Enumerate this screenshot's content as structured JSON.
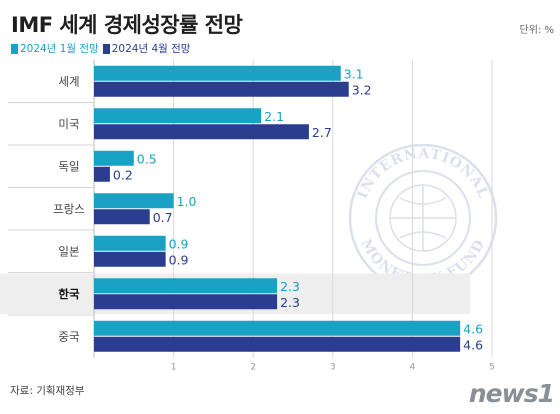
{
  "header": {
    "title": "IMF 세계 경제성장률 전망",
    "unit": "단위: %"
  },
  "source": "자료: 기획재정부",
  "logo": "news1",
  "chart_data": {
    "type": "bar",
    "orientation": "horizontal",
    "categories": [
      "세계",
      "미국",
      "독일",
      "프랑스",
      "일본",
      "한국",
      "중국"
    ],
    "highlight_category": "한국",
    "series": [
      {
        "name": "2024년 1월 전망",
        "color": "#1aa2c4",
        "values": [
          3.1,
          2.1,
          0.5,
          1.0,
          0.9,
          2.3,
          4.6
        ]
      },
      {
        "name": "2024년 4월 전망",
        "color": "#2b3d8f",
        "values": [
          3.2,
          2.7,
          0.2,
          0.7,
          0.9,
          2.3,
          4.6
        ]
      }
    ],
    "data_labels": [
      [
        "3.1",
        "2.1",
        "0.5",
        "1.0",
        "0.9",
        "2.3",
        "4.6"
      ],
      [
        "3.2",
        "2.7",
        "0.2",
        "0.7",
        "0.9",
        "2.3",
        "4.6"
      ]
    ],
    "xlim": [
      0,
      5
    ],
    "xticks": [
      1,
      2,
      3,
      4,
      5
    ],
    "grid": true,
    "legend_position": "top-left"
  },
  "watermark_text": [
    "INTERNATIONAL",
    "MONETARY FUND"
  ]
}
